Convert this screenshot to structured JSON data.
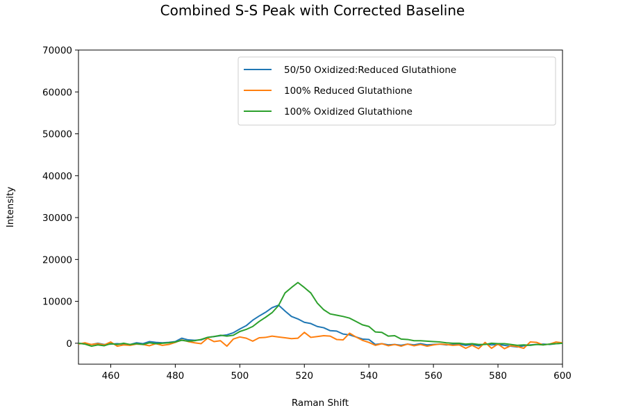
{
  "chart_data": {
    "type": "line",
    "title": "Combined S-S Peak with Corrected Baseline",
    "xlabel": "Raman Shift",
    "ylabel": "Intensity",
    "xlim": [
      450,
      600
    ],
    "ylim": [
      -5000,
      70000
    ],
    "xticks": [
      460,
      480,
      500,
      520,
      540,
      560,
      580,
      600
    ],
    "yticks": [
      0,
      10000,
      20000,
      30000,
      40000,
      50000,
      60000,
      70000
    ],
    "legend_position": "upper-right",
    "series": [
      {
        "name": "50/50 Oxidized:Reduced Glutathione",
        "color": "#1f77b4",
        "x": [
          450,
          452,
          454,
          456,
          458,
          460,
          462,
          464,
          466,
          468,
          470,
          472,
          474,
          476,
          478,
          480,
          482,
          484,
          486,
          488,
          490,
          492,
          494,
          496,
          498,
          500,
          502,
          504,
          506,
          508,
          510,
          512,
          514,
          516,
          518,
          520,
          522,
          524,
          526,
          528,
          530,
          532,
          534,
          536,
          538,
          540,
          542,
          544,
          546,
          548,
          550,
          552,
          554,
          556,
          558,
          560,
          562,
          564,
          566,
          568,
          570,
          572,
          574,
          576,
          578,
          580,
          582,
          584,
          586,
          588,
          590,
          592,
          594,
          596,
          598,
          600
        ],
        "y": [
          0,
          -200,
          -300,
          0,
          -300,
          -200,
          -100,
          -200,
          -300,
          100,
          -100,
          400,
          200,
          100,
          200,
          400,
          1200,
          800,
          700,
          800,
          1400,
          1600,
          1800,
          2000,
          2500,
          3400,
          4200,
          5500,
          6500,
          7400,
          8500,
          9100,
          7700,
          6400,
          5800,
          5000,
          4700,
          4000,
          3700,
          3000,
          2900,
          2200,
          2000,
          1500,
          1000,
          900,
          -300,
          -100,
          -400,
          -300,
          -500,
          -200,
          -400,
          -100,
          -400,
          -300,
          -200,
          -400,
          -300,
          -200,
          -500,
          -300,
          -600,
          -200,
          -400,
          -300,
          -500,
          -700,
          -900,
          -600,
          -400,
          -300,
          -200,
          -300,
          -100,
          0
        ]
      },
      {
        "name": "100% Reduced Glutathione",
        "color": "#ff7f0e",
        "x": [
          450,
          452,
          454,
          456,
          458,
          460,
          462,
          464,
          466,
          468,
          470,
          472,
          474,
          476,
          478,
          480,
          482,
          484,
          486,
          488,
          490,
          492,
          494,
          496,
          498,
          500,
          502,
          504,
          506,
          508,
          510,
          512,
          514,
          516,
          518,
          520,
          522,
          524,
          526,
          528,
          530,
          532,
          534,
          536,
          538,
          540,
          542,
          544,
          546,
          548,
          550,
          552,
          554,
          556,
          558,
          560,
          562,
          564,
          566,
          568,
          570,
          572,
          574,
          576,
          578,
          580,
          582,
          584,
          586,
          588,
          590,
          592,
          594,
          596,
          598,
          600
        ],
        "y": [
          -200,
          100,
          -300,
          -100,
          -400,
          300,
          -700,
          -400,
          -500,
          -200,
          -300,
          -600,
          -100,
          -500,
          -300,
          200,
          800,
          400,
          100,
          -100,
          1200,
          400,
          600,
          -700,
          1000,
          1500,
          1200,
          500,
          1300,
          1400,
          1700,
          1500,
          1300,
          1100,
          1200,
          2600,
          1400,
          1600,
          1800,
          1700,
          900,
          800,
          2400,
          1500,
          700,
          200,
          -500,
          -100,
          -600,
          -300,
          -700,
          -200,
          -600,
          -300,
          -700,
          -400,
          -200,
          -300,
          -500,
          -400,
          -1200,
          -500,
          -1300,
          200,
          -1200,
          -200,
          -1300,
          -600,
          -800,
          -1200,
          300,
          200,
          -400,
          -200,
          300,
          100
        ]
      },
      {
        "name": "100% Oxidized Glutathione",
        "color": "#2ca02c",
        "x": [
          450,
          452,
          454,
          456,
          458,
          460,
          462,
          464,
          466,
          468,
          470,
          472,
          474,
          476,
          478,
          480,
          482,
          484,
          486,
          488,
          490,
          492,
          494,
          496,
          498,
          500,
          502,
          504,
          506,
          508,
          510,
          512,
          514,
          516,
          518,
          520,
          522,
          524,
          526,
          528,
          530,
          532,
          534,
          536,
          538,
          540,
          542,
          544,
          546,
          548,
          550,
          552,
          554,
          556,
          558,
          560,
          562,
          564,
          566,
          568,
          570,
          572,
          574,
          576,
          578,
          580,
          582,
          584,
          586,
          588,
          590,
          592,
          594,
          596,
          598,
          600
        ],
        "y": [
          0,
          -200,
          -700,
          -400,
          -600,
          -100,
          -300,
          0,
          -300,
          -100,
          -300,
          100,
          -100,
          0,
          100,
          300,
          700,
          500,
          600,
          900,
          1400,
          1600,
          1900,
          1700,
          1900,
          2800,
          3300,
          4000,
          5200,
          6200,
          7300,
          9000,
          12000,
          13300,
          14500,
          13300,
          12000,
          9600,
          8000,
          7000,
          6700,
          6400,
          6000,
          5200,
          4400,
          4000,
          2700,
          2600,
          1700,
          1800,
          1000,
          900,
          600,
          600,
          500,
          400,
          300,
          100,
          0,
          0,
          -200,
          -100,
          -300,
          -300,
          0,
          -100,
          -100,
          -300,
          -500,
          -400,
          -500,
          -300,
          -400,
          -200,
          -100,
          0
        ]
      }
    ]
  }
}
